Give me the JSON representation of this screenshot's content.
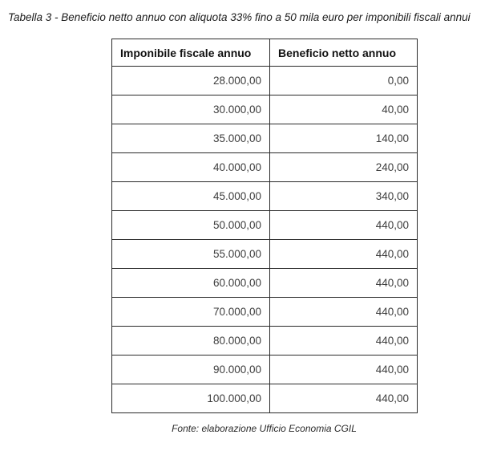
{
  "page": {
    "title": "Tabella 3 - Beneficio netto annuo con aliquota 33% fino a 50 mila euro per imponibili fiscali annui",
    "source_note": "Fonte: elaborazione Ufficio Economia CGIL"
  },
  "table": {
    "columns": [
      "Imponibile fiscale annuo",
      "Beneficio netto annuo"
    ],
    "rows": [
      [
        "28.000,00",
        "0,00"
      ],
      [
        "30.000,00",
        "40,00"
      ],
      [
        "35.000,00",
        "140,00"
      ],
      [
        "40.000,00",
        "240,00"
      ],
      [
        "45.000,00",
        "340,00"
      ],
      [
        "50.000,00",
        "440,00"
      ],
      [
        "55.000,00",
        "440,00"
      ],
      [
        "60.000,00",
        "440,00"
      ],
      [
        "70.000,00",
        "440,00"
      ],
      [
        "80.000,00",
        "440,00"
      ],
      [
        "90.000,00",
        "440,00"
      ],
      [
        "100.000,00",
        "440,00"
      ]
    ]
  },
  "chart_data": {
    "type": "table",
    "title": "Tabella 3 - Beneficio netto annuo con aliquota 33% fino a 50 mila euro per imponibili fiscali annui",
    "columns": [
      "Imponibile fiscale annuo",
      "Beneficio netto annuo"
    ],
    "x": [
      28000,
      30000,
      35000,
      40000,
      45000,
      50000,
      55000,
      60000,
      70000,
      80000,
      90000,
      100000
    ],
    "series": [
      {
        "name": "Beneficio netto annuo",
        "values": [
          0,
          40,
          140,
          240,
          340,
          440,
          440,
          440,
          440,
          440,
          440,
          440
        ]
      }
    ],
    "source": "Fonte: elaborazione Ufficio Economia CGIL",
    "number_format": "it-IT"
  },
  "colors": {
    "border": "#2a2a2a",
    "header_text": "#111111",
    "cell_text": "#3d3d3d",
    "background": "#ffffff"
  }
}
